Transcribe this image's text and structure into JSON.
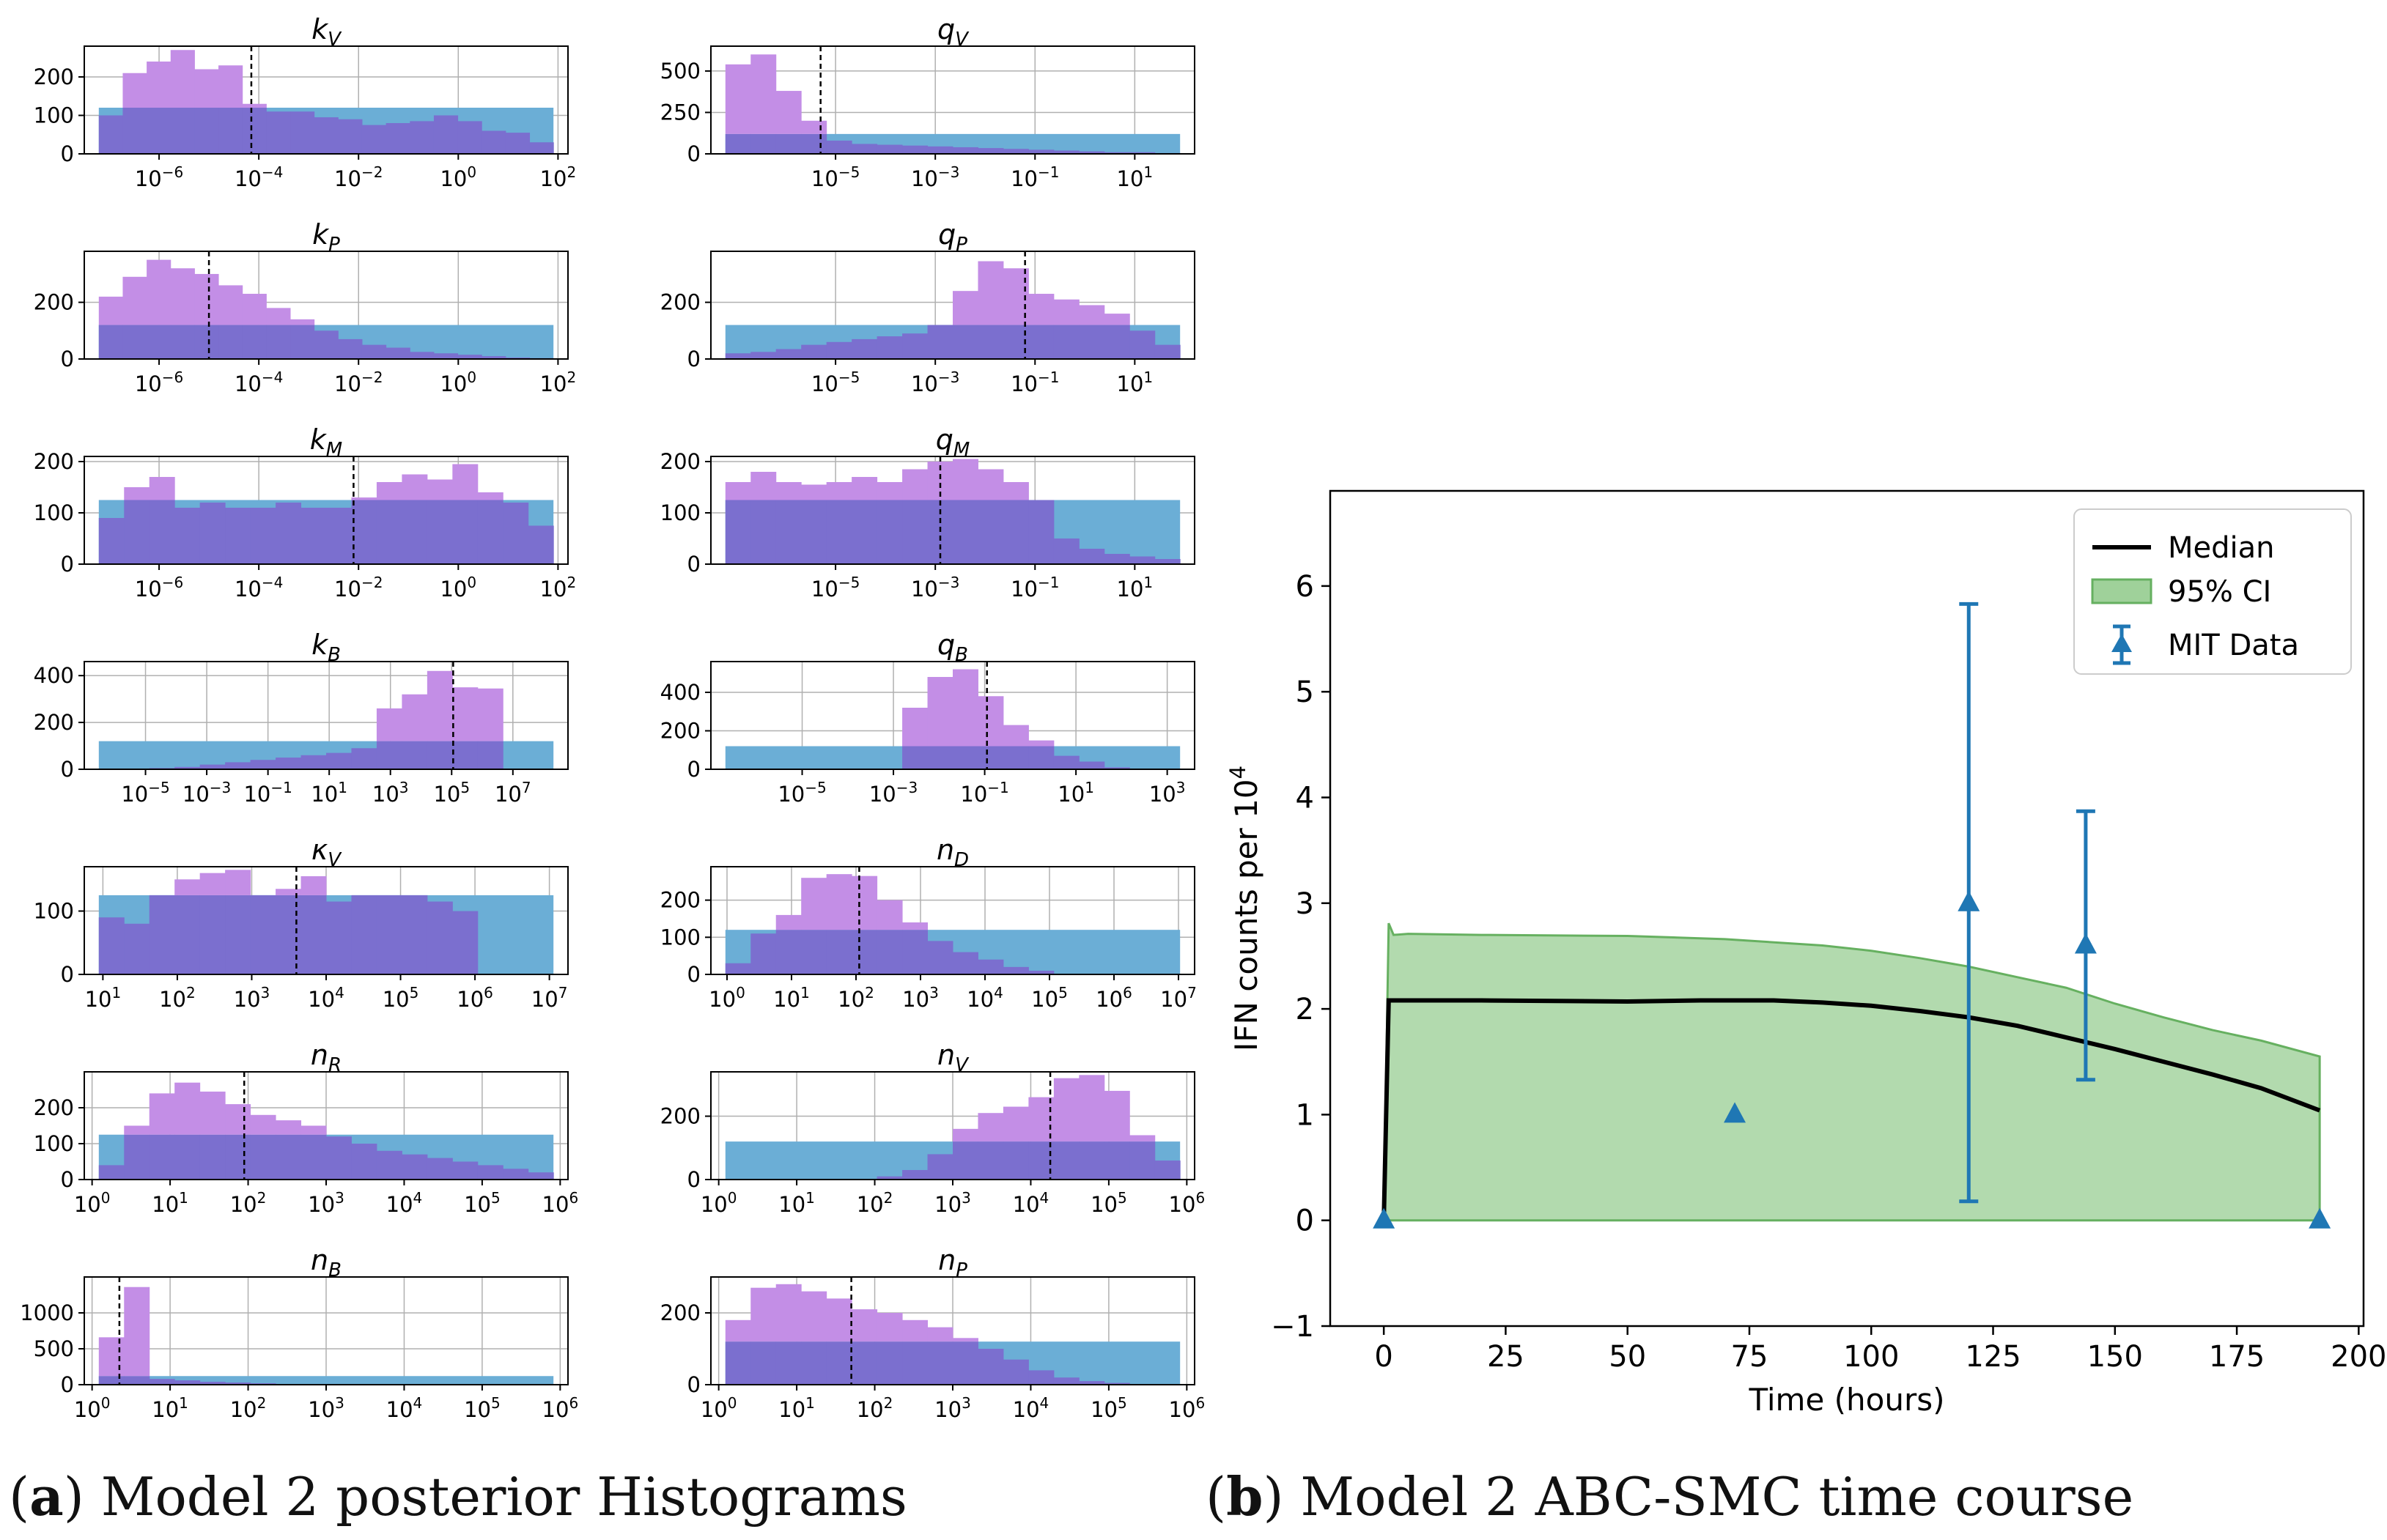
{
  "captions": {
    "a_letter": "a",
    "a_text": "Model 2 posterior Histograms",
    "b_letter": "b",
    "b_text": "Model 2 ABC-SMC time course"
  },
  "colors": {
    "prior": "#6baed6",
    "posterior": "#c38ee6",
    "overlap": "#7b6fcf",
    "ci": "#9fd19a",
    "ci_edge": "#66b060",
    "median": "#000000",
    "data": "#1f77b4"
  },
  "chart_data": [
    {
      "type": "histogram-grid",
      "xscale": "log",
      "panels": [
        {
          "title": "k_V",
          "sym": "k",
          "sub": "V",
          "xlog": [
            -7.5,
            2.2
          ],
          "xticks": [
            -6,
            -4,
            -2,
            0,
            2
          ],
          "ymax": 280,
          "yticks": [
            0,
            100,
            200
          ],
          "median": -4.15,
          "prior": 120,
          "posterior": [
            100,
            210,
            240,
            270,
            220,
            230,
            130,
            110,
            110,
            95,
            90,
            75,
            80,
            85,
            100,
            85,
            60,
            55,
            30
          ]
        },
        {
          "title": "q_V",
          "sym": "q",
          "sub": "V",
          "xlog": [
            -7.5,
            2.2
          ],
          "xticks": [
            -5,
            -3,
            -1,
            1
          ],
          "ymax": 650,
          "yticks": [
            0,
            250,
            500
          ],
          "median": -5.3,
          "prior": 120,
          "posterior": [
            540,
            600,
            380,
            200,
            80,
            60,
            55,
            50,
            45,
            40,
            35,
            30,
            25,
            20,
            15,
            10,
            10,
            5
          ]
        },
        {
          "title": "k_P",
          "sym": "k",
          "sub": "P",
          "xlog": [
            -7.5,
            2.2
          ],
          "xticks": [
            -6,
            -4,
            -2,
            0,
            2
          ],
          "ymax": 380,
          "yticks": [
            0,
            200
          ],
          "median": -5.0,
          "prior": 120,
          "posterior": [
            220,
            290,
            350,
            320,
            300,
            260,
            230,
            180,
            140,
            100,
            70,
            50,
            40,
            25,
            20,
            15,
            10,
            5,
            3
          ]
        },
        {
          "title": "q_P",
          "sym": "q",
          "sub": "P",
          "xlog": [
            -7.5,
            2.2
          ],
          "xticks": [
            -5,
            -3,
            -1,
            1
          ],
          "ymax": 380,
          "yticks": [
            0,
            200
          ],
          "median": -1.2,
          "prior": 120,
          "posterior": [
            20,
            25,
            35,
            50,
            60,
            70,
            80,
            90,
            120,
            240,
            345,
            320,
            230,
            210,
            190,
            160,
            100,
            50
          ]
        },
        {
          "title": "k_M",
          "sym": "k",
          "sub": "M",
          "xlog": [
            -7.5,
            2.2
          ],
          "xticks": [
            -6,
            -4,
            -2,
            0,
            2
          ],
          "ymax": 210,
          "yticks": [
            0,
            100,
            200
          ],
          "median": -2.1,
          "prior": 125,
          "posterior": [
            90,
            150,
            170,
            110,
            120,
            110,
            110,
            120,
            110,
            110,
            130,
            160,
            175,
            165,
            195,
            140,
            120,
            75
          ]
        },
        {
          "title": "q_M",
          "sym": "q",
          "sub": "M",
          "xlog": [
            -7.5,
            2.2
          ],
          "xticks": [
            -5,
            -3,
            -1,
            1
          ],
          "ymax": 210,
          "yticks": [
            0,
            100,
            200
          ],
          "median": -2.9,
          "prior": 125,
          "posterior": [
            160,
            180,
            160,
            155,
            160,
            170,
            160,
            185,
            200,
            205,
            185,
            160,
            125,
            50,
            30,
            20,
            15,
            10
          ]
        },
        {
          "title": "k_B",
          "sym": "k",
          "sub": "B",
          "xlog": [
            -7,
            8.8
          ],
          "xticks": [
            -5,
            -3,
            -1,
            1,
            3,
            5,
            7
          ],
          "ymax": 460,
          "yticks": [
            0,
            200,
            400
          ],
          "median": 5.05,
          "prior": 120,
          "posterior": [
            0,
            0,
            5,
            10,
            20,
            30,
            40,
            50,
            60,
            70,
            90,
            260,
            320,
            420,
            350,
            345,
            0,
            0
          ]
        },
        {
          "title": "q_B",
          "sym": "q",
          "sub": "B",
          "xlog": [
            -7,
            3.6
          ],
          "xticks": [
            -5,
            -3,
            -1,
            1,
            3
          ],
          "ymax": 560,
          "yticks": [
            0,
            200,
            400
          ],
          "median": -0.95,
          "prior": 120,
          "posterior": [
            0,
            0,
            0,
            0,
            0,
            0,
            0,
            320,
            480,
            520,
            380,
            230,
            150,
            70,
            40,
            10,
            0,
            0
          ]
        },
        {
          "title": "κ_V",
          "sym": "κ",
          "sub": "V",
          "xlog": [
            0.75,
            7.25
          ],
          "xticks": [
            1,
            2,
            3,
            4,
            5,
            6,
            7
          ],
          "ymax": 170,
          "yticks": [
            0,
            100
          ],
          "median": 3.6,
          "prior": 125,
          "posterior": [
            90,
            80,
            125,
            150,
            160,
            165,
            125,
            135,
            155,
            115,
            125,
            125,
            125,
            115,
            100,
            0,
            0,
            0
          ]
        },
        {
          "title": "n_D",
          "sym": "n",
          "sub": "D",
          "xlog": [
            -0.25,
            7.25
          ],
          "xticks": [
            0,
            1,
            2,
            3,
            4,
            5,
            6,
            7
          ],
          "ymax": 290,
          "yticks": [
            0,
            100,
            200
          ],
          "median": 2.05,
          "prior": 120,
          "posterior": [
            30,
            110,
            160,
            260,
            270,
            265,
            200,
            140,
            90,
            60,
            40,
            20,
            10,
            0,
            0,
            0,
            0,
            0
          ]
        },
        {
          "title": "n_R",
          "sym": "n",
          "sub": "R",
          "xlog": [
            -0.1,
            6.1
          ],
          "xticks": [
            0,
            1,
            2,
            3,
            4,
            5,
            6
          ],
          "ymax": 300,
          "yticks": [
            0,
            100,
            200
          ],
          "median": 1.95,
          "prior": 125,
          "posterior": [
            40,
            150,
            240,
            270,
            245,
            210,
            180,
            165,
            150,
            120,
            100,
            80,
            70,
            60,
            50,
            40,
            30,
            20
          ]
        },
        {
          "title": "n_V",
          "sym": "n",
          "sub": "V",
          "xlog": [
            -0.1,
            6.1
          ],
          "xticks": [
            0,
            1,
            2,
            3,
            4,
            5,
            6
          ],
          "ymax": 340,
          "yticks": [
            0,
            200
          ],
          "median": 4.25,
          "prior": 120,
          "posterior": [
            0,
            0,
            0,
            0,
            0,
            0,
            10,
            30,
            80,
            160,
            210,
            230,
            260,
            320,
            330,
            280,
            140,
            60
          ]
        },
        {
          "title": "n_B",
          "sym": "n",
          "sub": "B",
          "xlog": [
            -0.1,
            6.1
          ],
          "xticks": [
            0,
            1,
            2,
            3,
            4,
            5,
            6
          ],
          "ymax": 1500,
          "yticks": [
            0,
            500,
            1000
          ],
          "median": 0.35,
          "prior": 120,
          "posterior": [
            660,
            1360,
            80,
            60,
            40,
            30,
            20,
            10,
            5,
            5,
            0,
            0,
            0,
            0,
            0,
            0,
            0,
            0
          ]
        },
        {
          "title": "n_P",
          "sym": "n",
          "sub": "P",
          "xlog": [
            -0.1,
            6.1
          ],
          "xticks": [
            0,
            1,
            2,
            3,
            4,
            5,
            6
          ],
          "ymax": 300,
          "yticks": [
            0,
            200
          ],
          "median": 1.7,
          "prior": 120,
          "posterior": [
            180,
            270,
            280,
            260,
            240,
            210,
            200,
            180,
            160,
            130,
            100,
            70,
            40,
            20,
            10,
            5,
            0,
            0
          ]
        }
      ]
    },
    {
      "type": "line",
      "xlabel": "Time (hours)",
      "ylabel": "IFN counts per 10",
      "ylabel_sup": "4",
      "xlim": [
        -11,
        201
      ],
      "ylim": [
        -1,
        6.9
      ],
      "xticks": [
        0,
        25,
        50,
        75,
        100,
        125,
        150,
        175,
        200
      ],
      "yticks": [
        -1,
        0,
        1,
        2,
        3,
        4,
        5,
        6
      ],
      "ytick_labels": [
        "−1",
        "0",
        "1",
        "2",
        "3",
        "4",
        "5",
        "6"
      ],
      "legend": {
        "position": "top-right",
        "median": "Median",
        "ci": "95% CI",
        "data": "MIT Data"
      },
      "median": {
        "x": [
          0,
          1,
          10,
          20,
          50,
          65,
          80,
          90,
          100,
          110,
          120,
          130,
          140,
          150,
          160,
          170,
          180,
          192
        ],
        "y": [
          0,
          2.08,
          2.08,
          2.08,
          2.07,
          2.08,
          2.08,
          2.06,
          2.03,
          1.98,
          1.92,
          1.84,
          1.73,
          1.62,
          1.5,
          1.38,
          1.25,
          1.04
        ]
      },
      "ci_upper": {
        "x": [
          1,
          2,
          5,
          20,
          50,
          70,
          90,
          100,
          110,
          120,
          130,
          140,
          150,
          160,
          170,
          180,
          192
        ],
        "y": [
          2.81,
          2.7,
          2.71,
          2.7,
          2.69,
          2.66,
          2.6,
          2.55,
          2.48,
          2.4,
          2.3,
          2.2,
          2.05,
          1.92,
          1.8,
          1.7,
          1.55
        ]
      },
      "ci_lower": {
        "x": [
          0,
          192
        ],
        "y": [
          0,
          0
        ]
      },
      "points": [
        {
          "x": 0,
          "y": 0,
          "lo": 0,
          "hi": 0
        },
        {
          "x": 72,
          "y": 1.0,
          "lo": 1.0,
          "hi": 1.0
        },
        {
          "x": 120,
          "y": 3.0,
          "lo": 0.18,
          "hi": 5.83
        },
        {
          "x": 144,
          "y": 2.6,
          "lo": 1.33,
          "hi": 3.87
        },
        {
          "x": 192,
          "y": 0,
          "lo": 0,
          "hi": 0
        }
      ]
    }
  ]
}
